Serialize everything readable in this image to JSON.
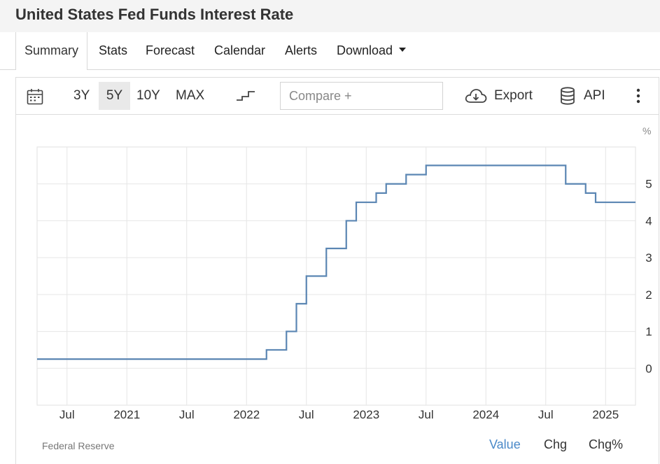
{
  "header": {
    "title": "United States Fed Funds Interest Rate"
  },
  "tabs": [
    {
      "label": "Summary"
    },
    {
      "label": "Stats"
    },
    {
      "label": "Forecast"
    },
    {
      "label": "Calendar"
    },
    {
      "label": "Alerts"
    },
    {
      "label": "Download"
    }
  ],
  "toolbar": {
    "ranges": [
      "3Y",
      "5Y",
      "10Y",
      "MAX"
    ],
    "selected_range": "5Y",
    "compare_placeholder": "Compare +",
    "export_label": "Export",
    "api_label": "API"
  },
  "footer": {
    "source": "Federal Reserve",
    "views": [
      "Value",
      "Chg",
      "Chg%"
    ],
    "selected_view": "Value"
  },
  "colors": {
    "line": "#5b86b3",
    "active": "#4a89c8",
    "grid": "#e6e6e6"
  },
  "chart_data": {
    "type": "line",
    "step": true,
    "unit": "%",
    "ylim": [
      -1,
      6
    ],
    "y_ticks": [
      0,
      1,
      2,
      3,
      4,
      5
    ],
    "x_ticks": [
      {
        "label": "Jul",
        "date": "2020-07"
      },
      {
        "label": "2021",
        "date": "2021-01"
      },
      {
        "label": "Jul",
        "date": "2021-07"
      },
      {
        "label": "2022",
        "date": "2022-01"
      },
      {
        "label": "Jul",
        "date": "2022-07"
      },
      {
        "label": "2023",
        "date": "2023-01"
      },
      {
        "label": "Jul",
        "date": "2023-07"
      },
      {
        "label": "2024",
        "date": "2024-01"
      },
      {
        "label": "Jul",
        "date": "2024-07"
      },
      {
        "label": "2025",
        "date": "2025-01"
      }
    ],
    "x_range": [
      "2020-04",
      "2025-04"
    ],
    "grid": true,
    "series": [
      {
        "points": [
          {
            "date": "2020-04",
            "value": 0.25
          },
          {
            "date": "2022-03",
            "value": 0.5
          },
          {
            "date": "2022-05",
            "value": 1.0
          },
          {
            "date": "2022-06",
            "value": 1.75
          },
          {
            "date": "2022-07",
            "value": 2.5
          },
          {
            "date": "2022-09",
            "value": 3.25
          },
          {
            "date": "2022-11",
            "value": 4.0
          },
          {
            "date": "2022-12",
            "value": 4.5
          },
          {
            "date": "2023-02",
            "value": 4.75
          },
          {
            "date": "2023-03",
            "value": 5.0
          },
          {
            "date": "2023-05",
            "value": 5.25
          },
          {
            "date": "2023-07",
            "value": 5.5
          },
          {
            "date": "2024-09",
            "value": 5.0
          },
          {
            "date": "2024-11",
            "value": 4.75
          },
          {
            "date": "2024-12",
            "value": 4.5
          },
          {
            "date": "2025-04",
            "value": 4.5
          }
        ]
      }
    ]
  }
}
